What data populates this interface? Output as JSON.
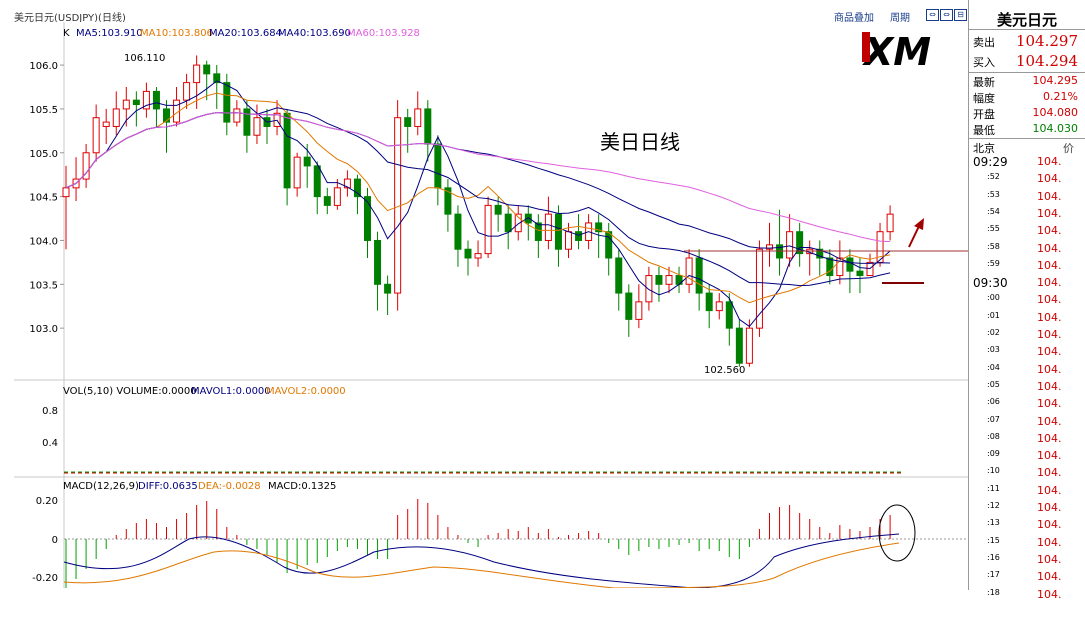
{
  "header": {
    "title": "美元日元(USDJPY)(日线)",
    "links": [
      "商品叠加",
      "周期"
    ],
    "window_buttons": [
      "⇔",
      "⇔",
      "⊟"
    ]
  },
  "main_chart": {
    "ma_prefix": "K",
    "ma_items": [
      {
        "label": "MA5:103.910",
        "color": "#000080"
      },
      {
        "label": "MA10:103.806",
        "color": "#e07800"
      },
      {
        "label": "MA20:103.684",
        "color": "#000080"
      },
      {
        "label": "MA40:103.690",
        "color": "#000080"
      },
      {
        "label": "MA60:103.928",
        "color": "#e060e0"
      }
    ],
    "overlay_text": "美日日线",
    "high_annotation": "106.110",
    "low_annotation": "102.560",
    "y_ticks": [
      "106.0",
      "105.5",
      "105.0",
      "104.5",
      "104.0",
      "103.5",
      "103.0"
    ],
    "logo_text": "XM"
  },
  "volume_pane": {
    "header": "VOL(5,10) VOLUME:0.0000",
    "mavol1": "MAVOL1:0.0000",
    "mavol2": "MAVOL2:0.0000",
    "y_ticks": [
      "0.8",
      "0.4"
    ]
  },
  "macd_pane": {
    "header": "MACD(12,26,9)",
    "diff": "DIFF:0.0635",
    "dea": "DEA:-0.0028",
    "macd": "MACD:0.1325",
    "y_ticks": [
      "0.20",
      "0",
      "-0.20"
    ]
  },
  "side_panel": {
    "title": "美元日元",
    "sell_label": "卖出",
    "sell_value": "104.297",
    "buy_label": "买入",
    "buy_value": "104.294",
    "stats": [
      {
        "label": "最新",
        "value": "104.295",
        "color": "#d00000"
      },
      {
        "label": "幅度",
        "value": "0.21%",
        "color": "#d00000"
      },
      {
        "label": "开盘",
        "value": "104.080",
        "color": "#d00000"
      },
      {
        "label": "最低",
        "value": "104.030",
        "color": "#008000"
      }
    ],
    "ticks_header_left": "北京",
    "ticks_header_right": "价",
    "ticks": [
      {
        "time": "09:29",
        "price": "104.",
        "big": true
      },
      {
        "time": ":52",
        "price": "104."
      },
      {
        "time": ":53",
        "price": "104."
      },
      {
        "time": ":54",
        "price": "104."
      },
      {
        "time": ":55",
        "price": "104."
      },
      {
        "time": ":58",
        "price": "104."
      },
      {
        "time": ":59",
        "price": "104."
      },
      {
        "time": "09:30",
        "price": "104.",
        "big": true
      },
      {
        "time": ":00",
        "price": "104."
      },
      {
        "time": ":01",
        "price": "104."
      },
      {
        "time": ":02",
        "price": "104."
      },
      {
        "time": ":03",
        "price": "104."
      },
      {
        "time": ":04",
        "price": "104."
      },
      {
        "time": ":05",
        "price": "104."
      },
      {
        "time": ":06",
        "price": "104."
      },
      {
        "time": ":07",
        "price": "104."
      },
      {
        "time": ":08",
        "price": "104."
      },
      {
        "time": ":09",
        "price": "104."
      },
      {
        "time": ":10",
        "price": "104."
      },
      {
        "time": ":11",
        "price": "104."
      },
      {
        "time": ":12",
        "price": "104."
      },
      {
        "time": ":13",
        "price": "104."
      },
      {
        "time": ":15",
        "price": "104."
      },
      {
        "time": ":16",
        "price": "104."
      },
      {
        "time": ":17",
        "price": "104."
      },
      {
        "time": ":18",
        "price": "104."
      }
    ]
  },
  "chart_data": {
    "type": "candlestick",
    "ylim": [
      102.5,
      106.4
    ],
    "candles": [
      [
        104.5,
        104.6,
        103.9,
        104.85
      ],
      [
        104.6,
        104.7,
        104.45,
        104.95
      ],
      [
        104.7,
        105.0,
        104.6,
        105.1
      ],
      [
        105.0,
        105.4,
        104.9,
        105.55
      ],
      [
        105.3,
        105.35,
        105.1,
        105.5
      ],
      [
        105.3,
        105.5,
        105.2,
        105.7
      ],
      [
        105.5,
        105.6,
        105.3,
        105.75
      ],
      [
        105.6,
        105.55,
        105.3,
        105.7
      ],
      [
        105.5,
        105.7,
        105.4,
        105.8
      ],
      [
        105.7,
        105.5,
        105.3,
        105.75
      ],
      [
        105.5,
        105.35,
        105.0,
        105.6
      ],
      [
        105.35,
        105.6,
        105.3,
        105.75
      ],
      [
        105.6,
        105.8,
        105.5,
        105.9
      ],
      [
        105.8,
        106.0,
        105.5,
        106.11
      ],
      [
        106.0,
        105.9,
        105.6,
        106.05
      ],
      [
        105.9,
        105.8,
        105.5,
        106.0
      ],
      [
        105.8,
        105.35,
        105.2,
        105.9
      ],
      [
        105.35,
        105.5,
        105.3,
        105.6
      ],
      [
        105.5,
        105.2,
        105.0,
        105.6
      ],
      [
        105.2,
        105.4,
        105.1,
        105.55
      ],
      [
        105.4,
        105.3,
        105.1,
        105.5
      ],
      [
        105.3,
        105.45,
        105.2,
        105.6
      ],
      [
        105.45,
        104.6,
        104.4,
        105.5
      ],
      [
        104.6,
        104.95,
        104.5,
        105.0
      ],
      [
        104.95,
        104.85,
        104.6,
        105.1
      ],
      [
        104.85,
        104.5,
        104.3,
        104.9
      ],
      [
        104.5,
        104.4,
        104.3,
        104.6
      ],
      [
        104.4,
        104.6,
        104.35,
        104.7
      ],
      [
        104.6,
        104.7,
        104.5,
        104.8
      ],
      [
        104.7,
        104.5,
        104.3,
        104.75
      ],
      [
        104.5,
        104.0,
        103.8,
        104.6
      ],
      [
        104.0,
        103.5,
        103.2,
        104.1
      ],
      [
        103.5,
        103.4,
        103.15,
        103.6
      ],
      [
        103.4,
        105.4,
        103.2,
        105.6
      ],
      [
        105.4,
        105.3,
        105.0,
        105.5
      ],
      [
        105.3,
        105.5,
        105.2,
        105.7
      ],
      [
        105.5,
        105.1,
        104.9,
        105.6
      ],
      [
        105.1,
        104.6,
        104.4,
        105.2
      ],
      [
        104.6,
        104.3,
        104.1,
        104.7
      ],
      [
        104.3,
        103.9,
        103.7,
        104.4
      ],
      [
        103.9,
        103.8,
        103.6,
        104.0
      ],
      [
        103.8,
        103.85,
        103.7,
        104.0
      ],
      [
        103.85,
        104.4,
        103.8,
        104.5
      ],
      [
        104.4,
        104.3,
        104.1,
        104.5
      ],
      [
        104.3,
        104.1,
        103.9,
        104.4
      ],
      [
        104.1,
        104.3,
        104.0,
        104.4
      ],
      [
        104.3,
        104.2,
        104.0,
        104.4
      ],
      [
        104.2,
        104.0,
        103.8,
        104.3
      ],
      [
        104.0,
        104.3,
        103.9,
        104.5
      ],
      [
        104.3,
        103.9,
        103.7,
        104.4
      ],
      [
        103.9,
        104.1,
        103.8,
        104.2
      ],
      [
        104.1,
        104.0,
        103.9,
        104.3
      ],
      [
        104.0,
        104.2,
        103.9,
        104.3
      ],
      [
        104.2,
        104.1,
        103.8,
        104.3
      ],
      [
        104.1,
        103.8,
        103.6,
        104.2
      ],
      [
        103.8,
        103.4,
        103.2,
        103.9
      ],
      [
        103.4,
        103.1,
        102.9,
        103.5
      ],
      [
        103.1,
        103.3,
        103.0,
        103.5
      ],
      [
        103.3,
        103.6,
        103.2,
        103.7
      ],
      [
        103.6,
        103.5,
        103.3,
        103.7
      ],
      [
        103.5,
        103.6,
        103.4,
        103.7
      ],
      [
        103.6,
        103.5,
        103.4,
        103.7
      ],
      [
        103.5,
        103.8,
        103.4,
        103.9
      ],
      [
        103.8,
        103.4,
        103.2,
        103.9
      ],
      [
        103.4,
        103.2,
        103.0,
        103.5
      ],
      [
        103.2,
        103.3,
        103.1,
        103.4
      ],
      [
        103.3,
        103.0,
        102.8,
        103.4
      ],
      [
        103.0,
        102.6,
        102.56,
        103.1
      ],
      [
        102.6,
        103.0,
        102.56,
        103.1
      ],
      [
        103.0,
        103.9,
        102.9,
        104.0
      ],
      [
        103.9,
        103.95,
        103.7,
        104.2
      ],
      [
        103.95,
        103.8,
        103.6,
        104.35
      ],
      [
        103.8,
        104.1,
        103.7,
        104.3
      ],
      [
        104.1,
        103.85,
        103.7,
        104.2
      ],
      [
        103.85,
        103.9,
        103.6,
        104.0
      ],
      [
        103.9,
        103.8,
        103.6,
        104.0
      ],
      [
        103.8,
        103.6,
        103.5,
        103.9
      ],
      [
        103.6,
        103.8,
        103.5,
        104.0
      ],
      [
        103.8,
        103.65,
        103.4,
        103.9
      ],
      [
        103.65,
        103.6,
        103.4,
        103.8
      ],
      [
        103.6,
        103.75,
        103.6,
        103.85
      ],
      [
        103.75,
        104.1,
        103.7,
        104.2
      ],
      [
        104.1,
        104.3,
        104.0,
        104.4
      ]
    ],
    "volume_zero_line": 0,
    "macd_hist": [
      -0.25,
      -0.2,
      -0.15,
      -0.1,
      -0.05,
      0.02,
      0.05,
      0.08,
      0.1,
      0.08,
      0.06,
      0.1,
      0.13,
      0.17,
      0.19,
      0.15,
      0.06,
      0.02,
      -0.03,
      -0.05,
      -0.08,
      -0.12,
      -0.17,
      -0.15,
      -0.13,
      -0.12,
      -0.09,
      -0.06,
      -0.04,
      -0.05,
      -0.08,
      -0.1,
      -0.1,
      0.12,
      0.15,
      0.2,
      0.18,
      0.12,
      0.06,
      0.02,
      -0.02,
      -0.04,
      0.02,
      0.03,
      0.05,
      0.04,
      0.06,
      0.03,
      0.05,
      0.01,
      0.02,
      0.03,
      0.04,
      0.03,
      -0.02,
      -0.05,
      -0.08,
      -0.06,
      -0.04,
      -0.05,
      -0.04,
      -0.03,
      -0.02,
      -0.06,
      -0.05,
      -0.06,
      -0.09,
      -0.1,
      -0.04,
      0.05,
      0.13,
      0.16,
      0.17,
      0.13,
      0.1,
      0.06,
      0.03,
      0.07,
      0.05,
      0.04,
      0.06,
      0.1,
      0.12
    ]
  }
}
